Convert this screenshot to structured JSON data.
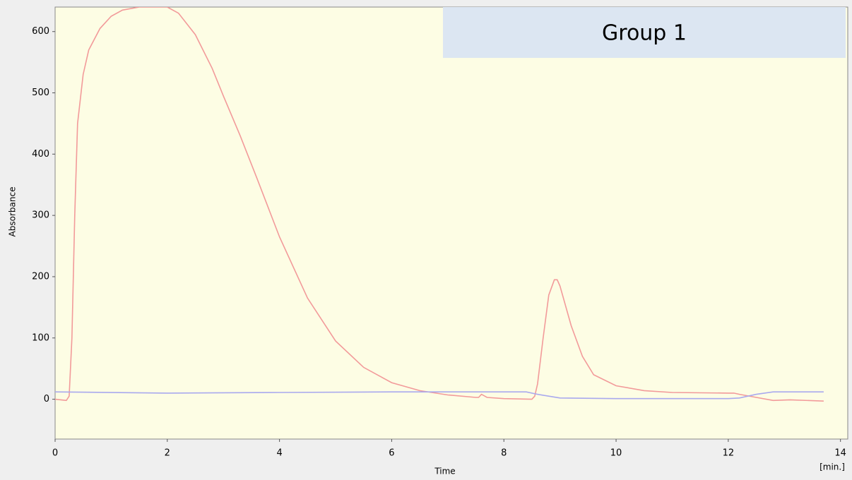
{
  "chart_data": {
    "type": "line",
    "annotation": "Group 1",
    "xlabel": "Time",
    "xunit": "[min.]",
    "ylabel": "Absorbance",
    "xlim": [
      0,
      14.13
    ],
    "ylim": [
      -65,
      640
    ],
    "xticks": [
      0,
      2,
      4,
      6,
      8,
      10,
      12,
      14
    ],
    "yticks": [
      0,
      100,
      200,
      300,
      400,
      500,
      600
    ],
    "background": "#fdfde4",
    "series": [
      {
        "color": "#f29a9a",
        "x": [
          0,
          0.1,
          0.2,
          0.25,
          0.3,
          0.35,
          0.4,
          0.5,
          0.6,
          0.8,
          1.0,
          1.2,
          1.5,
          1.8,
          2.0,
          2.2,
          2.5,
          2.8,
          3.0,
          3.3,
          3.6,
          4.0,
          4.5,
          5.0,
          5.5,
          6.0,
          6.5,
          7.0,
          7.5,
          7.55,
          7.6,
          7.7,
          8.0,
          8.5,
          8.55,
          8.6,
          8.7,
          8.8,
          8.9,
          8.95,
          9.0,
          9.2,
          9.4,
          9.6,
          10,
          10.5,
          11,
          12,
          12.1,
          12.2,
          12.5,
          12.8,
          13.1,
          13.7
        ],
        "values": [
          0,
          -1,
          -2,
          5,
          100,
          300,
          450,
          530,
          570,
          605,
          625,
          635,
          640,
          640,
          640,
          630,
          595,
          540,
          495,
          430,
          360,
          265,
          165,
          95,
          52,
          27,
          14,
          7,
          3,
          3,
          8,
          3,
          1,
          0,
          5,
          25,
          100,
          170,
          195,
          195,
          185,
          120,
          70,
          40,
          22,
          14,
          11,
          10,
          10,
          8,
          3,
          -2,
          -1,
          -3
        ]
      },
      {
        "color": "#a9a9ee",
        "x": [
          0,
          2,
          4,
          6,
          8.4,
          8.6,
          9,
          10,
          12,
          12.2,
          12.5,
          12.8,
          13.7
        ],
        "values": [
          12,
          10,
          11,
          12,
          12,
          8,
          2,
          1,
          1,
          2,
          8,
          12,
          12
        ]
      }
    ]
  }
}
